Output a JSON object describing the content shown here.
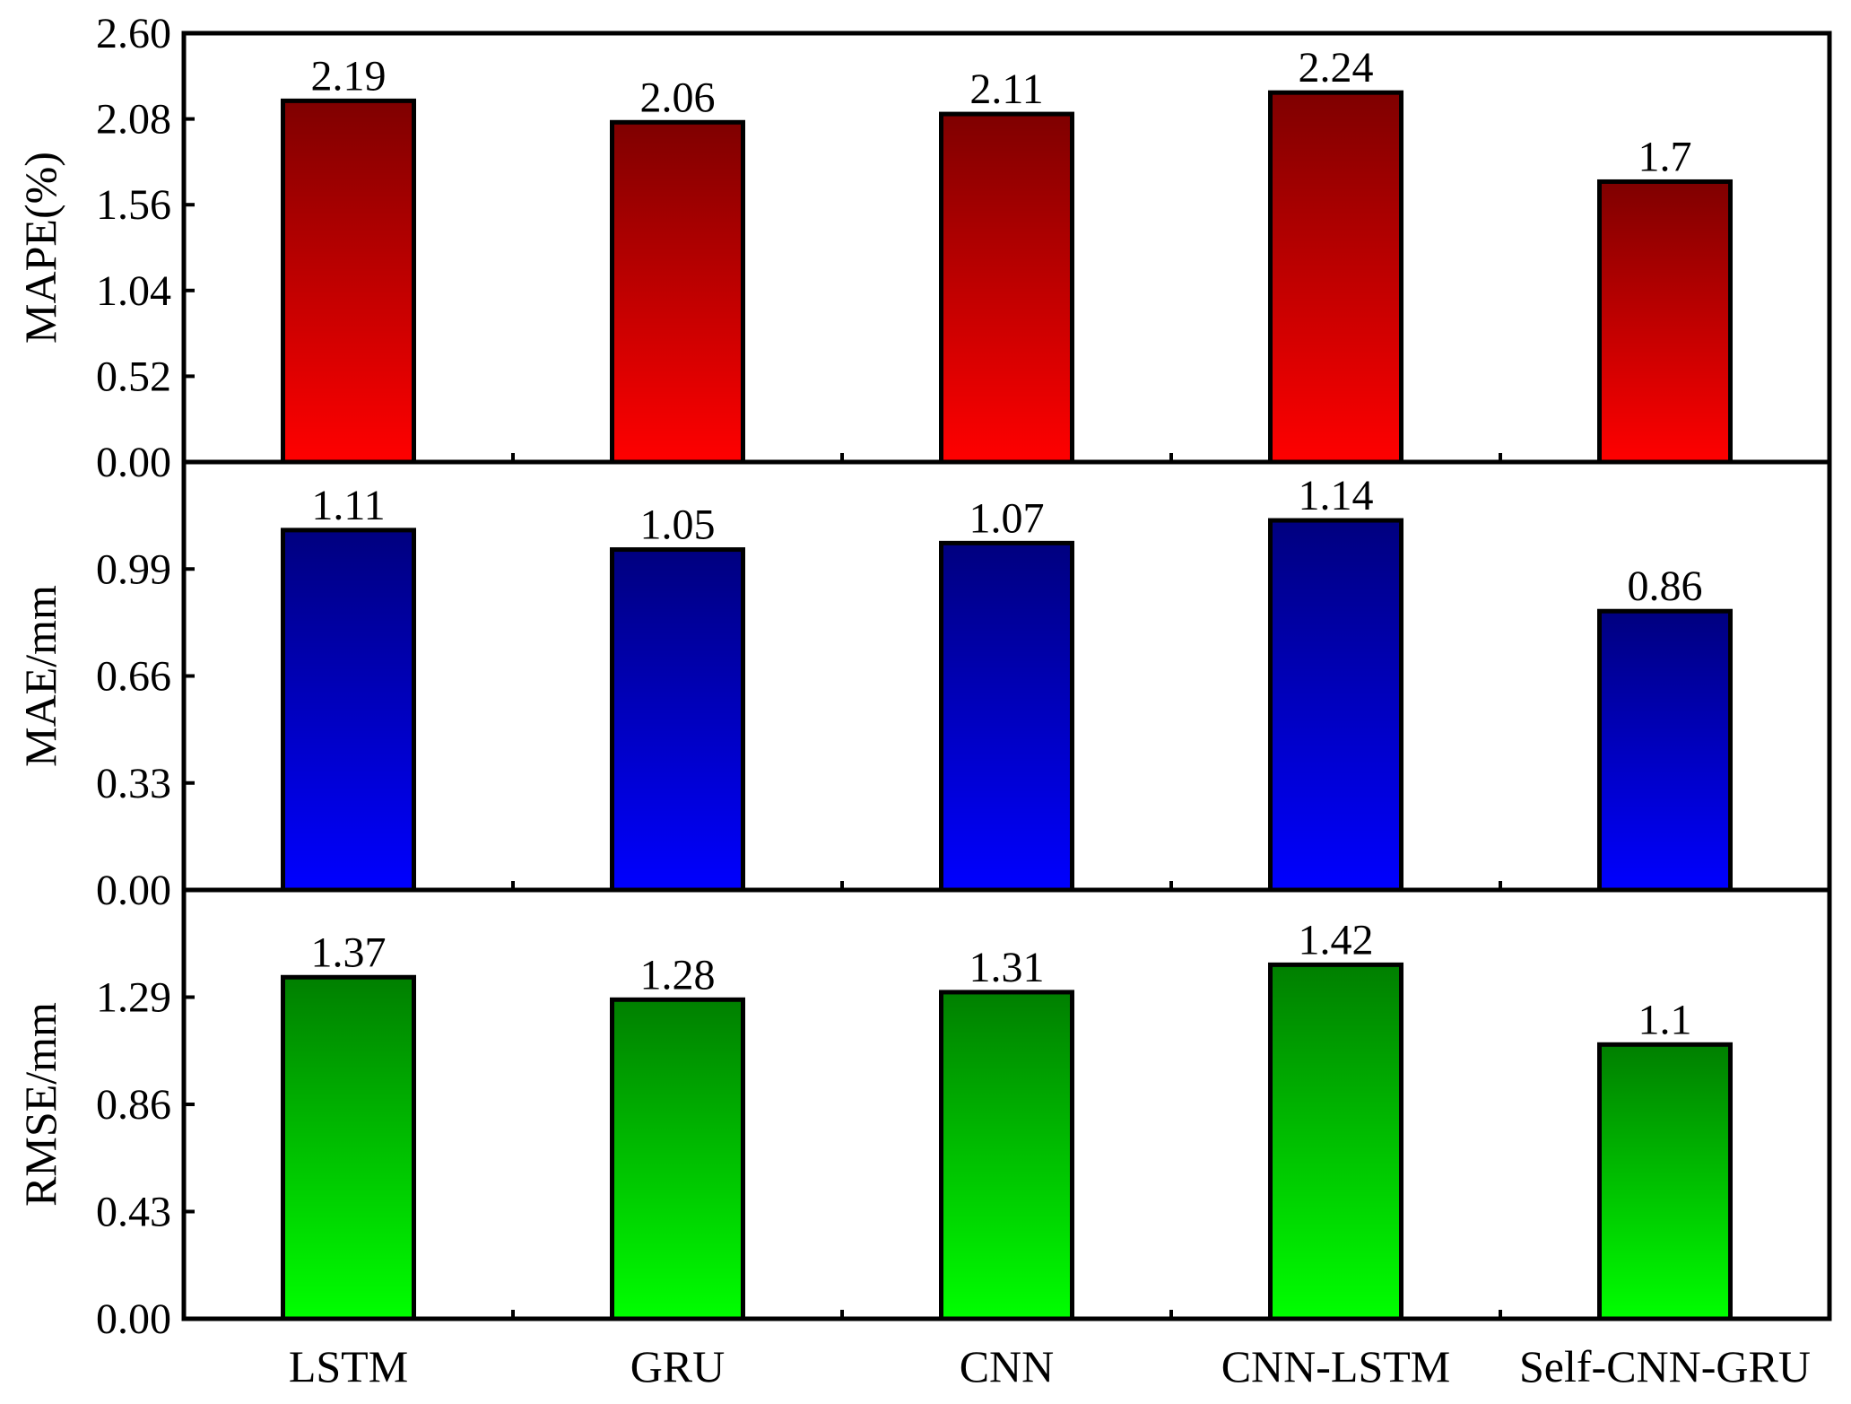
{
  "chart_data": {
    "type": "bar",
    "categories": [
      "LSTM",
      "GRU",
      "CNN",
      "CNN-LSTM",
      "Self-CNN-GRU"
    ],
    "panels": [
      {
        "id": "mape",
        "ylabel": "MAPE(%)",
        "ylim": [
          0,
          2.6
        ],
        "yticks": [
          "0.00",
          "0.52",
          "1.04",
          "1.56",
          "2.08",
          "2.60"
        ],
        "values": [
          2.19,
          2.06,
          2.11,
          2.24,
          1.7
        ],
        "value_labels": [
          "2.19",
          "2.06",
          "2.11",
          "2.24",
          "1.7"
        ],
        "color_top": "#7f0000",
        "color_bottom": "#ff0000"
      },
      {
        "id": "mae",
        "ylabel": "MAE/mm",
        "ylim": [
          0,
          1.32
        ],
        "yticks": [
          "0.00",
          "0.33",
          "0.66",
          "0.99"
        ],
        "values": [
          1.11,
          1.05,
          1.07,
          1.14,
          0.86
        ],
        "value_labels": [
          "1.11",
          "1.05",
          "1.07",
          "1.14",
          "0.86"
        ],
        "color_top": "#00007f",
        "color_bottom": "#0000ff"
      },
      {
        "id": "rmse",
        "ylabel": "RMSE/mm",
        "ylim": [
          0,
          1.72
        ],
        "yticks": [
          "0.00",
          "0.43",
          "0.86",
          "1.29"
        ],
        "values": [
          1.37,
          1.28,
          1.31,
          1.42,
          1.1
        ],
        "value_labels": [
          "1.37",
          "1.28",
          "1.31",
          "1.42",
          "1.1"
        ],
        "color_top": "#007f00",
        "color_bottom": "#00ff00"
      }
    ],
    "grid": false,
    "legend": "none"
  }
}
